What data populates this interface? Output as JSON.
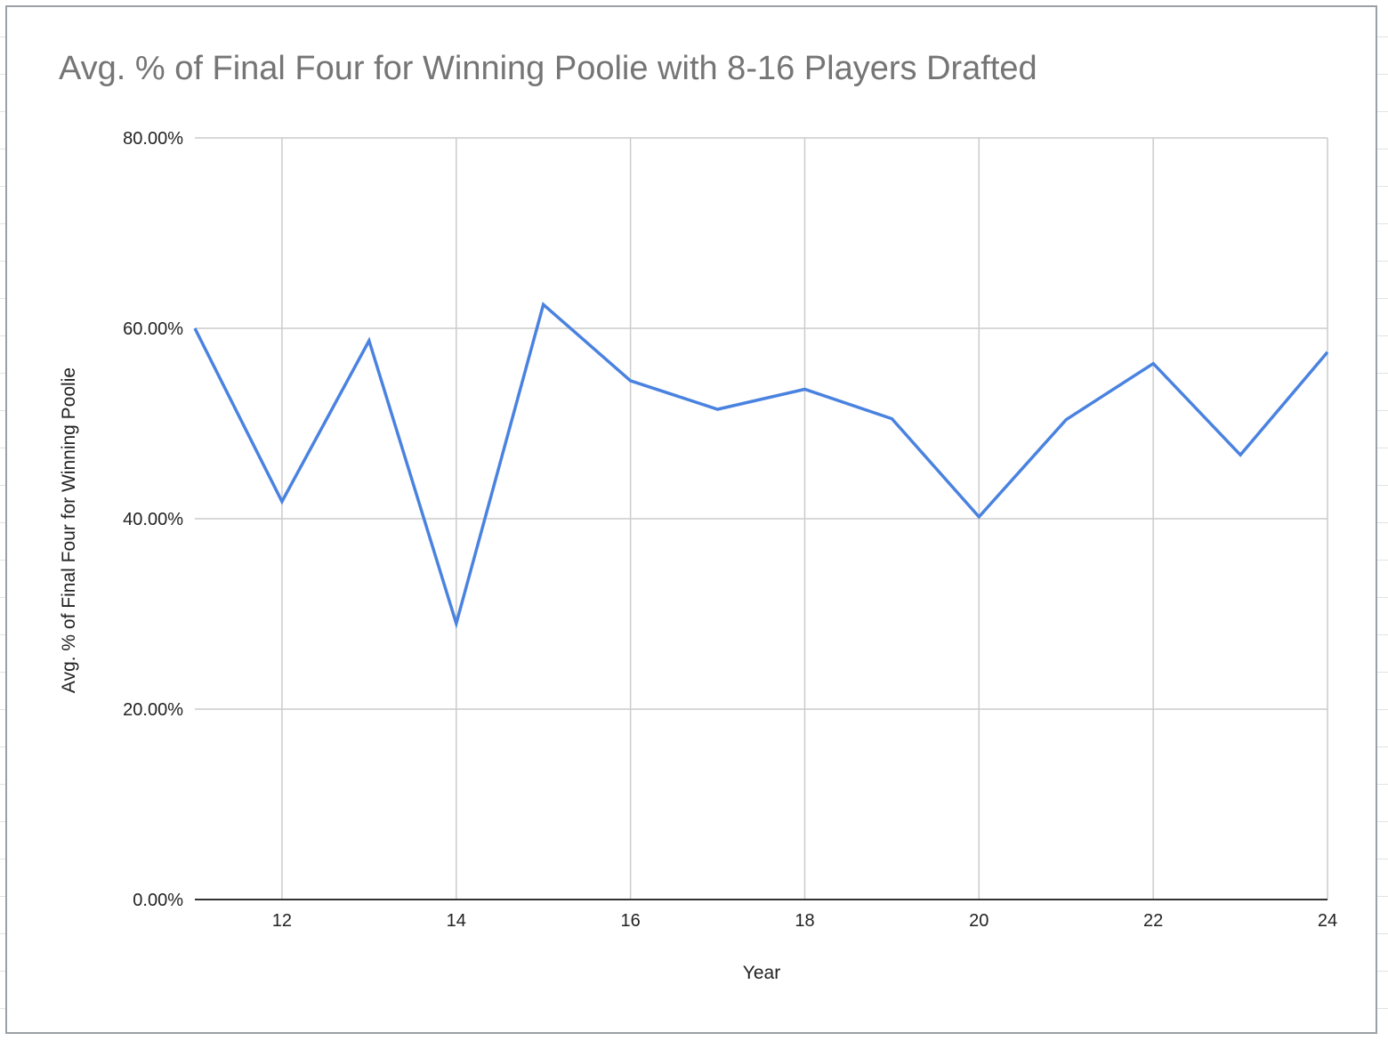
{
  "chart_data": {
    "type": "line",
    "title": "Avg. % of Final Four for Winning Poolie with 8-16 Players Drafted",
    "xlabel": "Year",
    "ylabel": "Avg. % of Final Four for Winning Poolie",
    "xlim": [
      11,
      24
    ],
    "ylim": [
      0,
      0.8
    ],
    "x_ticks": [
      12,
      14,
      16,
      18,
      20,
      22,
      24
    ],
    "y_ticks": [
      0,
      0.2,
      0.4,
      0.6,
      0.8
    ],
    "y_tick_labels": [
      "0.00%",
      "20.00%",
      "40.00%",
      "60.00%",
      "80.00%"
    ],
    "grid": true,
    "line_color": "#4a82e0",
    "series": [
      {
        "x": [
          11,
          12,
          13,
          14,
          15,
          16,
          17,
          18,
          19,
          20,
          21,
          22,
          23,
          24
        ],
        "values": [
          0.6,
          0.418,
          0.587,
          0.29,
          0.625,
          0.545,
          0.515,
          0.536,
          0.505,
          0.402,
          0.504,
          0.563,
          0.467,
          0.575
        ]
      }
    ]
  }
}
